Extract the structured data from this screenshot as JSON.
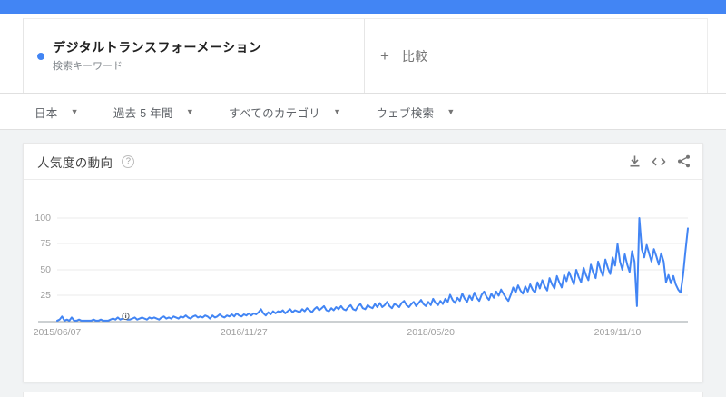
{
  "app": {
    "top_bar_color": "#4285f4",
    "accent_blue": "#4285f4"
  },
  "term_card": {
    "term": "デジタルトランスフォーメーション",
    "type_label": "検索キーワード",
    "dot_color": "#4285f4"
  },
  "compare": {
    "plus": "+",
    "label": "比較"
  },
  "filters": [
    {
      "label": "日本"
    },
    {
      "label": "過去 5 年間"
    },
    {
      "label": "すべてのカテゴリ"
    },
    {
      "label": "ウェブ検索"
    }
  ],
  "chart_card": {
    "title": "人気度の動向",
    "help_glyph": "?",
    "icons": [
      {
        "name": "download"
      },
      {
        "name": "embed"
      },
      {
        "name": "share"
      }
    ]
  },
  "chart_data": {
    "type": "line",
    "title": "人気度の動向",
    "series_name": "デジタルトランスフォーメーション",
    "region": "日本",
    "time_range": "過去 5 年間",
    "x_unit": "week",
    "x_ticks": [
      "2015/06/07",
      "2016/11/27",
      "2018/05/20",
      "2019/11/10"
    ],
    "x_tick_weeks": [
      0,
      77,
      154,
      231
    ],
    "y_ticks": [
      "100",
      "75",
      "50",
      "25"
    ],
    "ylim": [
      0,
      100
    ],
    "grid": true,
    "legend": false,
    "line_color": "#4285f4",
    "annotation_week": 28,
    "values": [
      1,
      2,
      5,
      1,
      2,
      1,
      4,
      1,
      1,
      2,
      1,
      1,
      1,
      1,
      1,
      2,
      1,
      1,
      2,
      1,
      1,
      1,
      2,
      3,
      2,
      4,
      2,
      3,
      3,
      2,
      2,
      3,
      4,
      2,
      3,
      4,
      3,
      2,
      4,
      3,
      4,
      3,
      2,
      4,
      5,
      3,
      4,
      3,
      5,
      4,
      3,
      5,
      4,
      6,
      4,
      3,
      5,
      6,
      4,
      5,
      4,
      6,
      5,
      3,
      6,
      4,
      5,
      7,
      5,
      4,
      6,
      5,
      7,
      5,
      8,
      6,
      5,
      7,
      6,
      8,
      6,
      8,
      7,
      9,
      12,
      8,
      6,
      9,
      7,
      10,
      8,
      10,
      9,
      11,
      8,
      10,
      12,
      9,
      11,
      10,
      9,
      12,
      10,
      13,
      11,
      9,
      12,
      14,
      11,
      13,
      15,
      11,
      10,
      13,
      11,
      14,
      12,
      15,
      12,
      11,
      14,
      16,
      12,
      11,
      15,
      17,
      13,
      12,
      16,
      14,
      13,
      17,
      14,
      18,
      14,
      16,
      19,
      15,
      13,
      17,
      16,
      14,
      18,
      20,
      16,
      14,
      17,
      19,
      15,
      18,
      21,
      17,
      15,
      19,
      16,
      22,
      18,
      16,
      20,
      17,
      22,
      19,
      26,
      21,
      18,
      23,
      20,
      27,
      22,
      19,
      25,
      21,
      28,
      23,
      20,
      26,
      29,
      24,
      21,
      27,
      23,
      29,
      25,
      31,
      27,
      23,
      20,
      26,
      33,
      28,
      35,
      30,
      27,
      34,
      29,
      36,
      31,
      28,
      38,
      32,
      40,
      34,
      30,
      42,
      36,
      32,
      44,
      38,
      33,
      45,
      39,
      48,
      42,
      36,
      50,
      43,
      38,
      52,
      45,
      40,
      55,
      47,
      42,
      58,
      50,
      44,
      60,
      52,
      46,
      62,
      54,
      75,
      58,
      50,
      65,
      55,
      48,
      68,
      58,
      15,
      100,
      70,
      62,
      74,
      66,
      58,
      70,
      63,
      55,
      66,
      58,
      38,
      45,
      37,
      44,
      36,
      31,
      28,
      45,
      68,
      90
    ]
  }
}
